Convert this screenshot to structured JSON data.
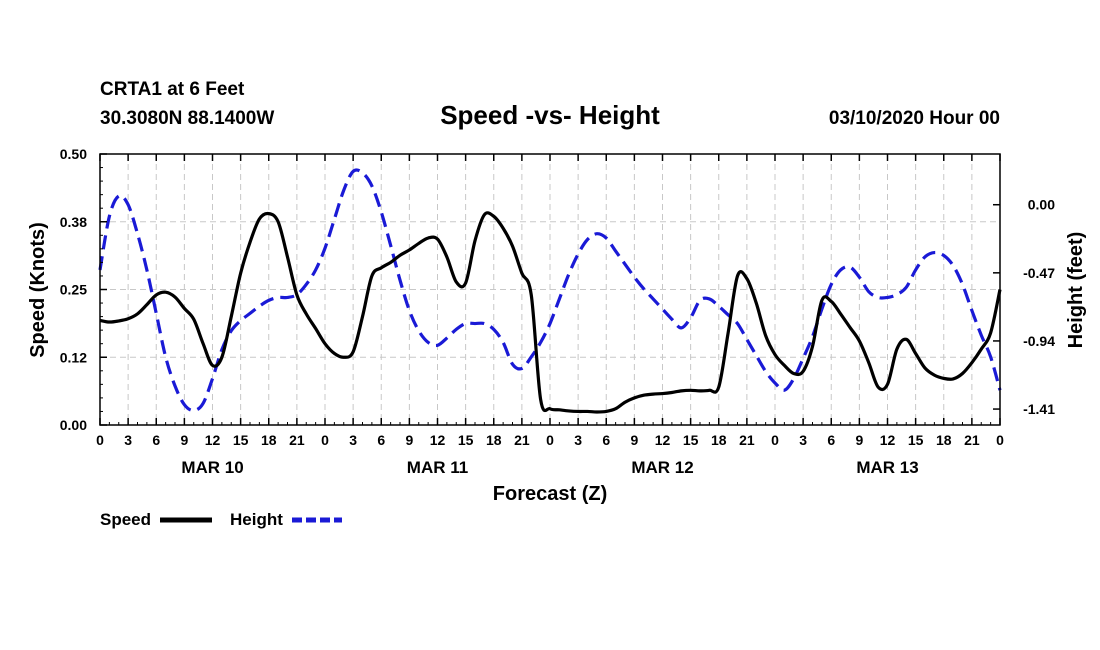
{
  "header": {
    "station": "CRTA1 at 6 Feet",
    "coords": "30.3080N 88.1400W",
    "title": "Speed -vs- Height",
    "datetime": "03/10/2020 Hour 00"
  },
  "legend": {
    "speed": "Speed",
    "height": "Height"
  },
  "colors": {
    "speed": "#000000",
    "height": "#1a1ad6",
    "grid": "#c8c8c8",
    "axis": "#000000"
  },
  "chart_data": {
    "type": "line",
    "title": "Speed -vs- Height",
    "xlabel": "Forecast (Z)",
    "ylabel_left": "Speed (Knots)",
    "ylabel_right": "Height (feet)",
    "x_range_hours": [
      0,
      96
    ],
    "x_tick_hours": [
      0,
      3,
      6,
      9,
      12,
      15,
      18,
      21,
      24,
      27,
      30,
      33,
      36,
      39,
      42,
      45,
      48,
      51,
      54,
      57,
      60,
      63,
      66,
      69,
      72,
      75,
      78,
      81,
      84,
      87,
      90,
      93,
      96
    ],
    "x_tick_labels": [
      "0",
      "3",
      "6",
      "9",
      "12",
      "15",
      "18",
      "21",
      "0",
      "3",
      "6",
      "9",
      "12",
      "15",
      "18",
      "21",
      "0",
      "3",
      "6",
      "9",
      "12",
      "15",
      "18",
      "21",
      "0",
      "3",
      "6",
      "9",
      "12",
      "15",
      "18",
      "21",
      "0"
    ],
    "date_labels": [
      {
        "hour": 12,
        "label": "MAR 10"
      },
      {
        "hour": 36,
        "label": "MAR 11"
      },
      {
        "hour": 60,
        "label": "MAR 12"
      },
      {
        "hour": 84,
        "label": "MAR 13"
      }
    ],
    "left_axis": {
      "range": [
        0,
        0.5
      ],
      "ticks": [
        0.0,
        0.125,
        0.25,
        0.375,
        0.5
      ],
      "tick_labels": [
        "0.00",
        "0.12",
        "0.25",
        "0.38",
        "0.50"
      ]
    },
    "right_axis": {
      "range": [
        -1.52,
        0.35
      ],
      "ticks": [
        0.0,
        -0.47,
        -0.94,
        -1.41
      ],
      "tick_labels": [
        "0.00",
        "-0.47",
        "-0.94",
        "-1.41"
      ]
    },
    "grid": true,
    "series": [
      {
        "name": "Speed",
        "axis": "left",
        "style": "solid",
        "x": [
          0,
          1,
          2,
          3,
          4,
          5,
          6,
          7,
          8,
          9,
          10,
          11,
          12,
          13,
          14,
          15,
          16,
          17,
          18,
          19,
          20,
          21,
          22,
          23,
          24,
          25,
          26,
          27,
          28,
          29,
          30,
          31,
          32,
          33,
          34,
          35,
          36,
          37,
          38,
          39,
          40,
          41,
          42,
          43,
          44,
          45,
          46,
          47,
          48,
          49,
          50,
          51,
          52,
          53,
          54,
          55,
          56,
          57,
          58,
          59,
          60,
          61,
          62,
          63,
          64,
          65,
          66,
          67,
          68,
          69,
          70,
          71,
          72,
          73,
          74,
          75,
          76,
          77,
          78,
          79,
          80,
          81,
          82,
          83,
          84,
          85,
          86,
          87,
          88,
          89,
          90,
          91,
          92,
          93,
          94,
          95,
          96
        ],
        "values": [
          0.193,
          0.19,
          0.192,
          0.196,
          0.205,
          0.222,
          0.24,
          0.245,
          0.236,
          0.215,
          0.195,
          0.15,
          0.11,
          0.125,
          0.2,
          0.28,
          0.337,
          0.38,
          0.39,
          0.375,
          0.31,
          0.24,
          0.205,
          0.178,
          0.15,
          0.132,
          0.125,
          0.135,
          0.2,
          0.275,
          0.29,
          0.3,
          0.313,
          0.323,
          0.335,
          0.345,
          0.343,
          0.31,
          0.264,
          0.262,
          0.34,
          0.388,
          0.385,
          0.363,
          0.33,
          0.28,
          0.24,
          0.047,
          0.03,
          0.028,
          0.026,
          0.025,
          0.025,
          0.024,
          0.025,
          0.03,
          0.042,
          0.05,
          0.055,
          0.057,
          0.058,
          0.06,
          0.063,
          0.064,
          0.063,
          0.064,
          0.07,
          0.17,
          0.275,
          0.27,
          0.225,
          0.165,
          0.13,
          0.11,
          0.095,
          0.099,
          0.145,
          0.23,
          0.228,
          0.205,
          0.18,
          0.155,
          0.115,
          0.07,
          0.075,
          0.14,
          0.158,
          0.132,
          0.105,
          0.092,
          0.086,
          0.085,
          0.095,
          0.115,
          0.14,
          0.17,
          0.25
        ]
      },
      {
        "name": "Height",
        "axis": "right",
        "style": "dashed",
        "x": [
          0,
          1,
          2,
          3,
          4,
          5,
          6,
          7,
          8,
          9,
          10,
          11,
          12,
          13,
          14,
          15,
          16,
          17,
          18,
          19,
          20,
          21,
          22,
          23,
          24,
          25,
          26,
          27,
          28,
          29,
          30,
          31,
          32,
          33,
          34,
          35,
          36,
          37,
          38,
          39,
          40,
          41,
          42,
          43,
          44,
          45,
          46,
          47,
          48,
          49,
          50,
          51,
          52,
          53,
          54,
          55,
          56,
          57,
          58,
          59,
          60,
          61,
          62,
          63,
          64,
          65,
          66,
          67,
          68,
          69,
          70,
          71,
          72,
          73,
          74,
          75,
          76,
          77,
          78,
          79,
          80,
          81,
          82,
          83,
          84,
          85,
          86,
          87,
          88,
          89,
          90,
          91,
          92,
          93,
          94,
          95,
          96
        ],
        "values": [
          -0.45,
          -0.08,
          0.06,
          0.0,
          -0.2,
          -0.45,
          -0.75,
          -1.05,
          -1.25,
          -1.38,
          -1.42,
          -1.37,
          -1.2,
          -1.0,
          -0.87,
          -0.8,
          -0.75,
          -0.7,
          -0.66,
          -0.64,
          -0.64,
          -0.62,
          -0.55,
          -0.45,
          -0.3,
          -0.1,
          0.1,
          0.23,
          0.22,
          0.13,
          -0.05,
          -0.28,
          -0.52,
          -0.73,
          -0.87,
          -0.95,
          -0.97,
          -0.92,
          -0.86,
          -0.82,
          -0.82,
          -0.82,
          -0.86,
          -0.95,
          -1.1,
          -1.13,
          -1.05,
          -0.95,
          -0.82,
          -0.65,
          -0.48,
          -0.34,
          -0.24,
          -0.2,
          -0.23,
          -0.32,
          -0.41,
          -0.5,
          -0.58,
          -0.65,
          -0.72,
          -0.79,
          -0.85,
          -0.78,
          -0.66,
          -0.65,
          -0.7,
          -0.76,
          -0.82,
          -0.93,
          -1.04,
          -1.15,
          -1.23,
          -1.28,
          -1.2,
          -1.06,
          -0.91,
          -0.72,
          -0.55,
          -0.45,
          -0.43,
          -0.5,
          -0.6,
          -0.64,
          -0.64,
          -0.62,
          -0.57,
          -0.45,
          -0.36,
          -0.33,
          -0.35,
          -0.42,
          -0.55,
          -0.73,
          -0.9,
          -1.05,
          -1.28
        ]
      }
    ]
  }
}
